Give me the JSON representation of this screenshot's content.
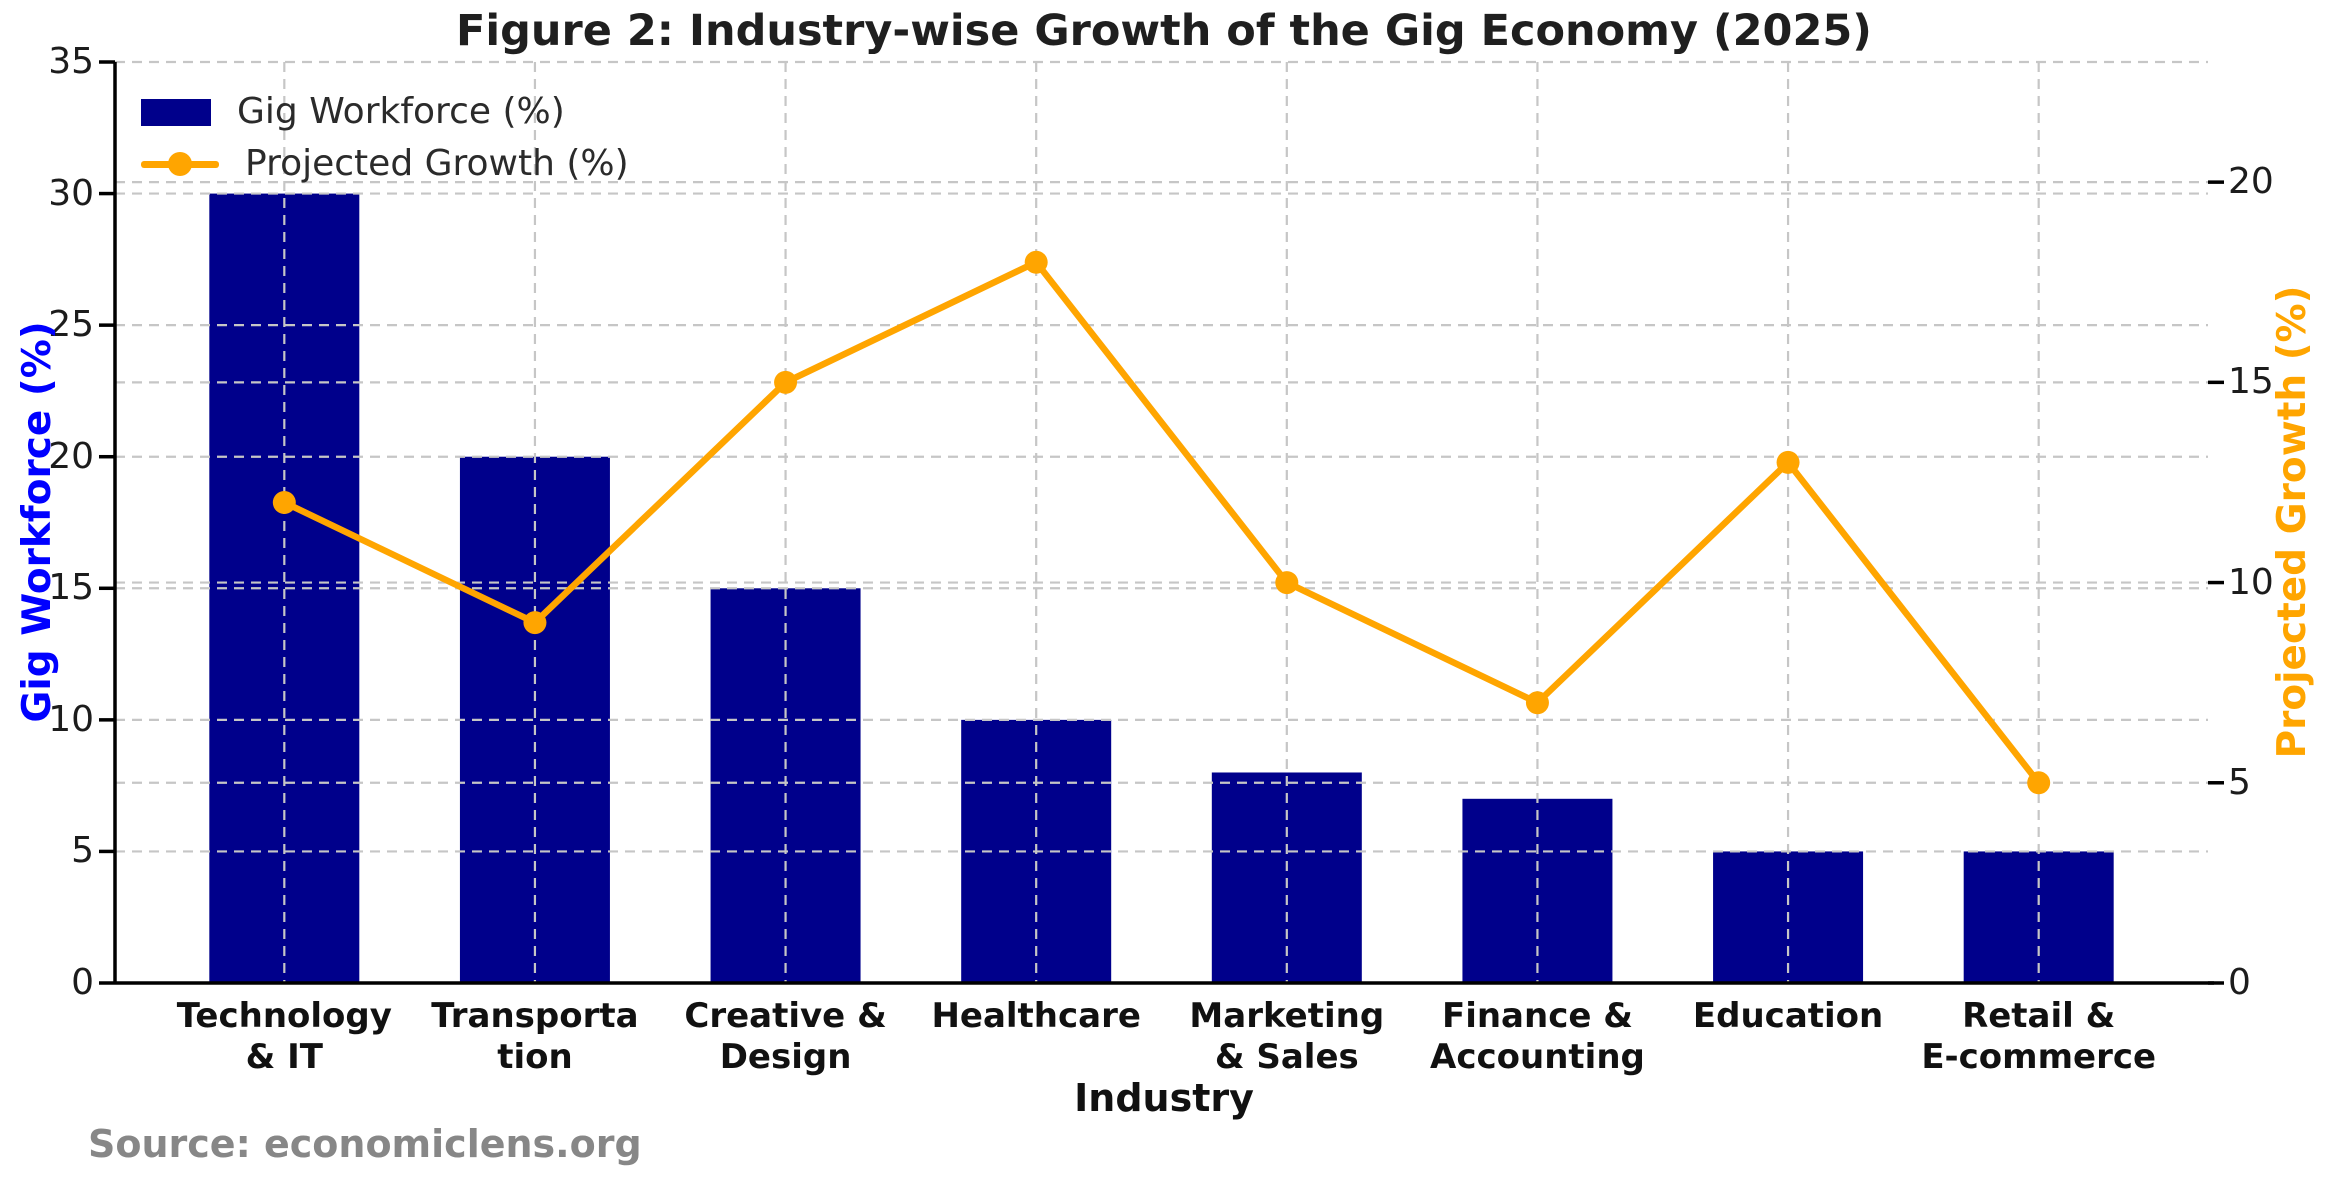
{
  "source_note": "Source: economiclens.org",
  "chart_data": {
    "type": "bar+line",
    "title": "Figure 2: Industry-wise Growth of the Gig Economy (2025)",
    "xlabel": "Industry",
    "categories": [
      "Technology & IT",
      "Transportation",
      "Creative & Design",
      "Healthcare",
      "Marketing & Sales",
      "Finance & Accounting",
      "Education",
      "Retail & E-commerce"
    ],
    "category_lines": [
      [
        "Technology",
        "& IT"
      ],
      [
        "Transporta",
        "tion"
      ],
      [
        "Creative &",
        "Design"
      ],
      [
        "Healthcare"
      ],
      [
        "Marketing",
        "& Sales"
      ],
      [
        "Finance &",
        "Accounting"
      ],
      [
        "Education"
      ],
      [
        "Retail &",
        "E-commerce"
      ]
    ],
    "series": [
      {
        "name": "Gig Workforce (%)",
        "kind": "bar",
        "axis": "left",
        "color": "#00008B",
        "values": [
          30,
          20,
          15,
          10,
          8,
          7,
          5,
          5
        ]
      },
      {
        "name": "Projected Growth (%)",
        "kind": "line",
        "axis": "right",
        "color": "#FFA500",
        "values": [
          12,
          9,
          15,
          18,
          10,
          7,
          13,
          5
        ]
      }
    ],
    "left_axis": {
      "label": "Gig Workforce (%)",
      "color": "#0000FF",
      "min": 0,
      "max": 35,
      "ticks": [
        0,
        5,
        10,
        15,
        20,
        25,
        30,
        35
      ]
    },
    "right_axis": {
      "label": "Projected Growth (%)",
      "color": "#FFA500",
      "min": 0,
      "max": 23,
      "ticks": [
        0,
        5,
        10,
        15,
        20
      ]
    },
    "grid": {
      "style": "dashed",
      "color": "#c6c6c6",
      "horizontal": "left and right axis ticks",
      "vertical": "category centers"
    },
    "legend": {
      "position": "upper-left",
      "frame": false
    },
    "spine_color": "#000000"
  }
}
